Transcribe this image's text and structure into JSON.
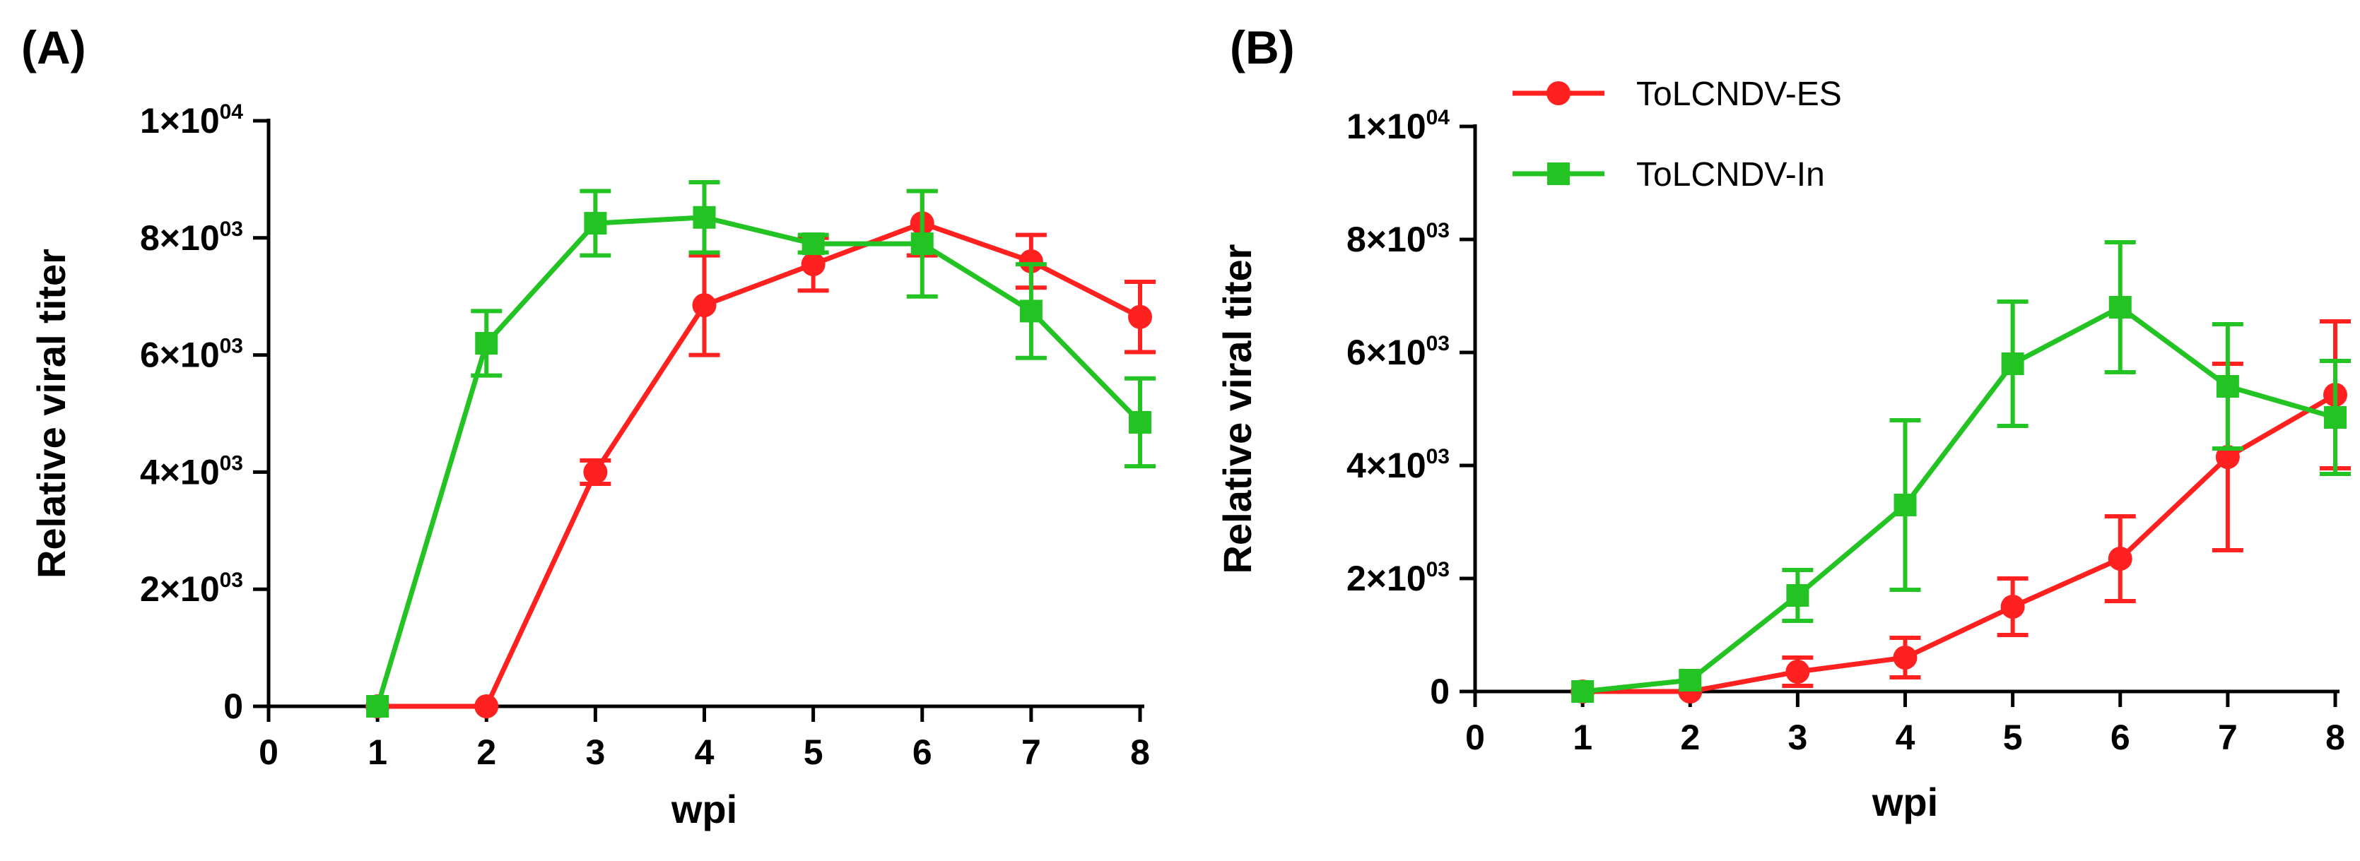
{
  "chart_data": [
    {
      "type": "line",
      "panel_label": "(A)",
      "xlabel": "wpi",
      "ylabel": "Relative viral titer",
      "xlim": [
        0,
        8
      ],
      "ylim": [
        0,
        10000
      ],
      "x_ticks": [
        0,
        1,
        2,
        3,
        4,
        5,
        6,
        7,
        8
      ],
      "y_ticks": [
        {
          "value": 0,
          "mant": "0",
          "exp": ""
        },
        {
          "value": 2000,
          "mant": "2×10",
          "exp": "03"
        },
        {
          "value": 4000,
          "mant": "4×10",
          "exp": "03"
        },
        {
          "value": 6000,
          "mant": "6×10",
          "exp": "03"
        },
        {
          "value": 8000,
          "mant": "8×10",
          "exp": "03"
        },
        {
          "value": 10000,
          "mant": "1×10",
          "exp": "04"
        }
      ],
      "grid": false,
      "legend": null,
      "series": [
        {
          "name": "ToLCNDV-ES",
          "color": "#ff2020",
          "marker": "circle",
          "x": [
            1,
            2,
            3,
            4,
            5,
            6,
            7,
            8
          ],
          "y": [
            0,
            0,
            4000,
            6850,
            7550,
            8250,
            7600,
            6650
          ],
          "err": [
            0,
            0,
            200,
            850,
            450,
            550,
            450,
            600
          ]
        },
        {
          "name": "ToLCNDV-In",
          "color": "#22c322",
          "marker": "square",
          "x": [
            1,
            2,
            3,
            4,
            5,
            6,
            7,
            8
          ],
          "y": [
            0,
            6200,
            8250,
            8350,
            7900,
            7900,
            6750,
            4850
          ],
          "err": [
            0,
            550,
            550,
            600,
            150,
            900,
            800,
            750
          ]
        }
      ]
    },
    {
      "type": "line",
      "panel_label": "(B)",
      "xlabel": "wpi",
      "ylabel": "Relative viral titer",
      "xlim": [
        0,
        8
      ],
      "ylim": [
        0,
        10000
      ],
      "x_ticks": [
        0,
        1,
        2,
        3,
        4,
        5,
        6,
        7,
        8
      ],
      "y_ticks": [
        {
          "value": 0,
          "mant": "0",
          "exp": ""
        },
        {
          "value": 2000,
          "mant": "2×10",
          "exp": "03"
        },
        {
          "value": 4000,
          "mant": "4×10",
          "exp": "03"
        },
        {
          "value": 6000,
          "mant": "6×10",
          "exp": "03"
        },
        {
          "value": 8000,
          "mant": "8×10",
          "exp": "03"
        },
        {
          "value": 10000,
          "mant": "1×10",
          "exp": "04"
        }
      ],
      "grid": false,
      "legend": "top-left",
      "series": [
        {
          "name": "ToLCNDV-ES",
          "color": "#ff2020",
          "marker": "circle",
          "x": [
            1,
            2,
            3,
            4,
            5,
            6,
            7,
            8
          ],
          "y": [
            0,
            0,
            350,
            600,
            1500,
            2350,
            4150,
            5250
          ],
          "err": [
            0,
            0,
            250,
            350,
            500,
            750,
            1650,
            1300
          ]
        },
        {
          "name": "ToLCNDV-In",
          "color": "#22c322",
          "marker": "square",
          "x": [
            1,
            2,
            3,
            4,
            5,
            6,
            7,
            8
          ],
          "y": [
            0,
            200,
            1700,
            3300,
            5800,
            6800,
            5400,
            4850
          ],
          "err": [
            0,
            0,
            450,
            1500,
            1100,
            1150,
            1100,
            1000
          ]
        }
      ]
    }
  ]
}
